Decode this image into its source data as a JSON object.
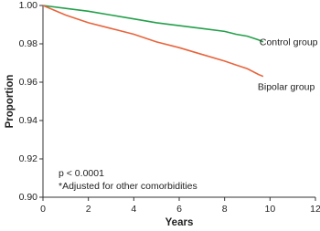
{
  "chart_data": {
    "type": "line",
    "x_label": "Years",
    "y_label": "Proportion",
    "annotations": [
      "p < 0.0001",
      "*Adjusted for other comorbidities"
    ],
    "x": [
      0,
      1,
      2,
      3,
      4,
      5,
      6,
      7,
      8,
      8.5,
      9,
      9.5,
      9.7
    ],
    "series": [
      {
        "name": "Control group",
        "color": "#23a04a",
        "values": [
          1.0,
          0.9985,
          0.997,
          0.995,
          0.993,
          0.991,
          0.9895,
          0.988,
          0.9865,
          0.985,
          0.984,
          0.982,
          0.981
        ]
      },
      {
        "name": "Bipolar group",
        "color": "#e8643c",
        "values": [
          1.0,
          0.995,
          0.991,
          0.988,
          0.985,
          0.981,
          0.978,
          0.9745,
          0.971,
          0.969,
          0.967,
          0.964,
          0.963
        ]
      }
    ],
    "xlim": [
      0,
      12
    ],
    "xticks": [
      0,
      2,
      4,
      6,
      8,
      10,
      12
    ],
    "ylim": [
      0.9,
      1.0
    ],
    "yticks": [
      {
        "value": 0.9,
        "label": "0.90"
      },
      0.92,
      0.94,
      0.96,
      0.98,
      {
        "value": 1.0,
        "label": "1.00"
      }
    ]
  }
}
